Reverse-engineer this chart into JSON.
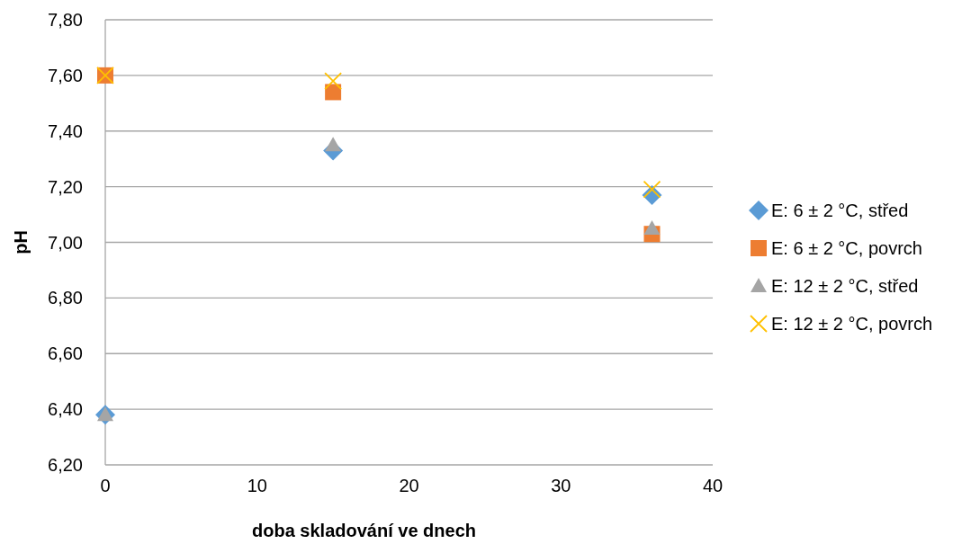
{
  "chart_data": {
    "type": "scatter",
    "xlabel": "doba skladování ve dnech",
    "ylabel": "pH",
    "xlim": [
      0,
      40
    ],
    "xticks": [
      0,
      10,
      20,
      30,
      40
    ],
    "ylim": [
      6.2,
      7.8
    ],
    "yticks": [
      {
        "value": 6.2,
        "label": "6,20"
      },
      {
        "value": 6.4,
        "label": "6,40"
      },
      {
        "value": 6.6,
        "label": "6,60"
      },
      {
        "value": 6.8,
        "label": "6,80"
      },
      {
        "value": 7.0,
        "label": "7,00"
      },
      {
        "value": 7.2,
        "label": "7,20"
      },
      {
        "value": 7.4,
        "label": "7,40"
      },
      {
        "value": 7.6,
        "label": "7,60"
      },
      {
        "value": 7.8,
        "label": "7,80"
      }
    ],
    "grid": "y",
    "legend": "right",
    "x": [
      0,
      15,
      36
    ],
    "series": [
      {
        "name": "E: 6 ± 2 °C, střed",
        "color": "#5b9bd5",
        "marker": "diamond",
        "values": [
          6.38,
          7.33,
          7.17
        ]
      },
      {
        "name": "E: 6 ± 2 °C, povrch",
        "color": "#ed7d31",
        "marker": "square",
        "values": [
          7.6,
          7.54,
          7.03
        ]
      },
      {
        "name": "E: 12 ± 2 °C, střed",
        "color": "#a5a5a5",
        "marker": "triangle",
        "values": [
          6.38,
          7.35,
          7.05
        ]
      },
      {
        "name": "E: 12 ± 2 °C, povrch",
        "color": "#ffc000",
        "marker": "cross",
        "values": [
          7.6,
          7.58,
          7.19
        ]
      }
    ]
  }
}
